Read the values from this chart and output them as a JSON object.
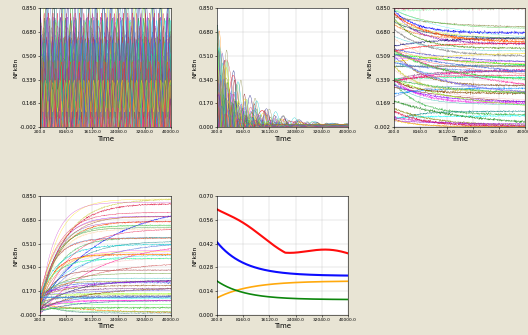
{
  "ylabel": "NFkBn",
  "xlabel": "Time",
  "x_ticks": [
    200.0,
    8160.0,
    16120.0,
    24080.0,
    32040.0,
    40000.0
  ],
  "x_tick_labels": [
    "200.0",
    "8160.0",
    "16120.0",
    "24080.0",
    "32040.0",
    "40000.0"
  ],
  "panel1_ylim": [
    -0.002,
    0.85
  ],
  "panel1_yticks": [
    -0.002,
    0.168,
    0.339,
    0.509,
    0.68,
    0.85
  ],
  "panel2_ylim": [
    0.0,
    0.85
  ],
  "panel2_yticks": [
    0.0,
    0.17,
    0.34,
    0.51,
    0.68,
    0.85
  ],
  "panel3_ylim": [
    -0.002,
    0.85
  ],
  "panel3_yticks": [
    -0.002,
    0.169,
    0.339,
    0.509,
    0.68,
    0.85
  ],
  "panel4_ylim": [
    -0.0,
    0.85
  ],
  "panel4_yticks": [
    -0.0,
    0.17,
    0.34,
    0.51,
    0.68,
    0.85
  ],
  "panel5_ylim": [
    0.0,
    0.07
  ],
  "panel5_yticks": [
    0.0,
    0.014,
    0.028,
    0.042,
    0.056,
    0.07
  ],
  "bg_color": "#e8e4d4",
  "plot_bg": "#ffffff",
  "n_lines": 60
}
